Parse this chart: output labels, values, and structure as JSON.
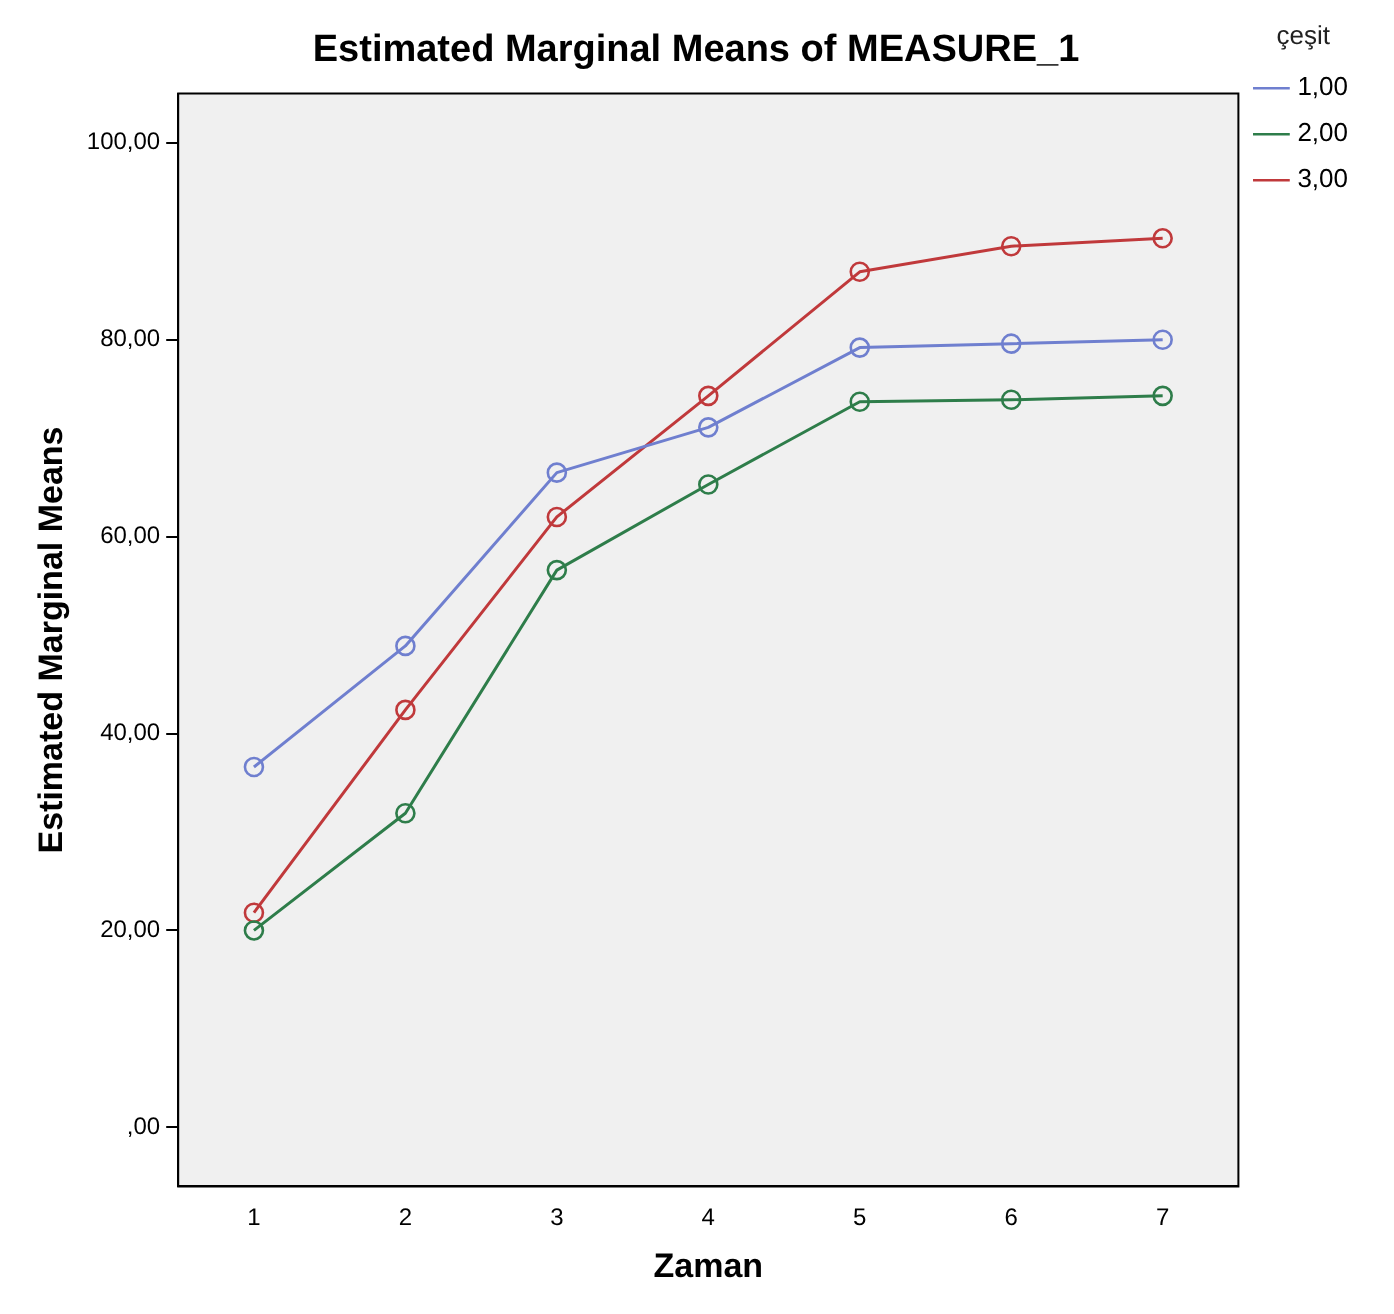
{
  "chart_data": {
    "type": "line",
    "title": "Estimated Marginal Means of MEASURE_1",
    "xlabel": "Zaman",
    "ylabel": "Estimated Marginal Means",
    "legend_title": "çeşit",
    "categories": [
      "1",
      "2",
      "3",
      "4",
      "5",
      "6",
      "7"
    ],
    "series": [
      {
        "name": "1,00",
        "color": "#6f7fcf",
        "values": [
          36.6,
          48.9,
          66.5,
          71.1,
          79.2,
          79.6,
          80.0
        ]
      },
      {
        "name": "2,00",
        "color": "#2e7d4a",
        "values": [
          20.0,
          31.9,
          56.6,
          65.3,
          73.7,
          73.9,
          74.3
        ]
      },
      {
        "name": "3,00",
        "color": "#c0393b",
        "values": [
          21.8,
          42.4,
          62.0,
          74.3,
          86.9,
          89.5,
          90.3
        ]
      }
    ],
    "ylim": [
      -6,
      105
    ],
    "yticks": [
      {
        "value": 0,
        "label": ",00"
      },
      {
        "value": 20,
        "label": "20,00"
      },
      {
        "value": 40,
        "label": "40,00"
      },
      {
        "value": 60,
        "label": "60,00"
      },
      {
        "value": 80,
        "label": "80,00"
      },
      {
        "value": 100,
        "label": "100,00"
      }
    ],
    "grid": false,
    "legend": "top right",
    "marker": "circle",
    "line_style": "solid"
  }
}
